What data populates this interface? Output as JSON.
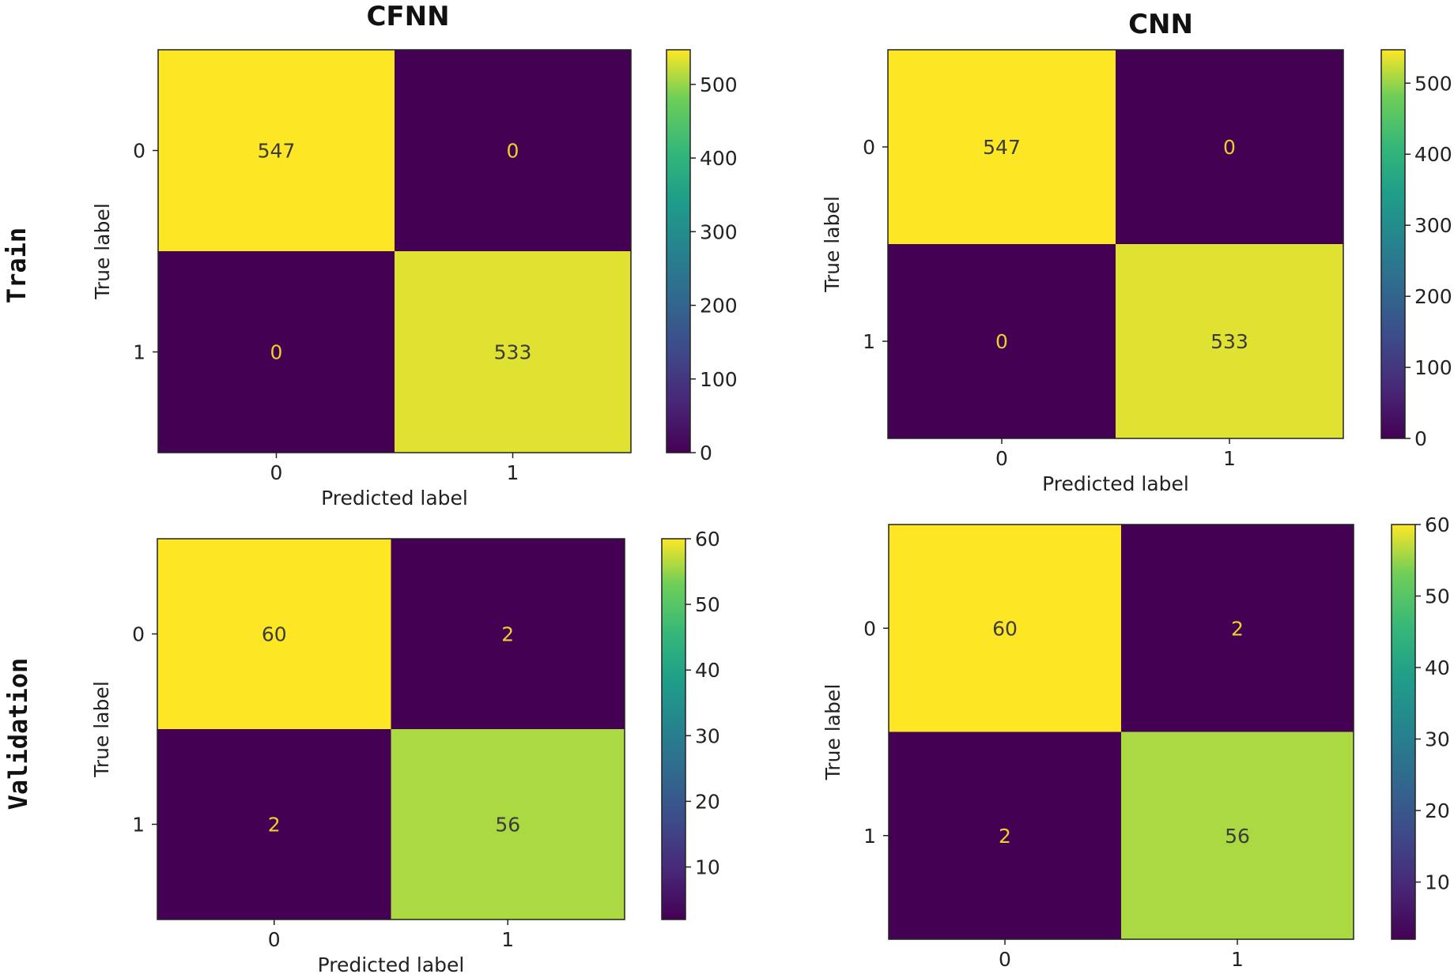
{
  "column_titles": [
    "CFNN",
    "CNN"
  ],
  "row_labels": [
    "Train",
    "Validation"
  ],
  "chart_data": [
    {
      "type": "heatmap",
      "model": "CFNN",
      "split": "Train",
      "matrix": [
        [
          547,
          0
        ],
        [
          0,
          533
        ]
      ],
      "x_categories": [
        "0",
        "1"
      ],
      "y_categories": [
        "0",
        "1"
      ],
      "xlabel": "Predicted label",
      "ylabel": "True label",
      "colorbar": {
        "range": [
          0,
          547
        ],
        "ticks": [
          "0",
          "100",
          "200",
          "300",
          "400",
          "500"
        ]
      },
      "colormap": "viridis"
    },
    {
      "type": "heatmap",
      "model": "CNN",
      "split": "Train",
      "matrix": [
        [
          547,
          0
        ],
        [
          0,
          533
        ]
      ],
      "x_categories": [
        "0",
        "1"
      ],
      "y_categories": [
        "0",
        "1"
      ],
      "xlabel": "Predicted label",
      "ylabel": "True label",
      "colorbar": {
        "range": [
          0,
          547
        ],
        "ticks": [
          "0",
          "100",
          "200",
          "300",
          "400",
          "500"
        ]
      },
      "colormap": "viridis"
    },
    {
      "type": "heatmap",
      "model": "CFNN",
      "split": "Validation",
      "matrix": [
        [
          60,
          2
        ],
        [
          2,
          56
        ]
      ],
      "x_categories": [
        "0",
        "1"
      ],
      "y_categories": [
        "0",
        "1"
      ],
      "xlabel": "Predicted label",
      "ylabel": "True label",
      "colorbar": {
        "range": [
          2,
          60
        ],
        "ticks": [
          "10",
          "20",
          "30",
          "40",
          "50",
          "60"
        ]
      },
      "colormap": "viridis"
    },
    {
      "type": "heatmap",
      "model": "CNN",
      "split": "Validation",
      "matrix": [
        [
          60,
          2
        ],
        [
          2,
          56
        ]
      ],
      "x_categories": [
        "0",
        "1"
      ],
      "y_categories": [
        "0",
        "1"
      ],
      "xlabel": "Predicted label",
      "ylabel": "True label",
      "colorbar": {
        "range": [
          2,
          60
        ],
        "ticks": [
          "10",
          "20",
          "30",
          "40",
          "50",
          "60"
        ]
      },
      "colormap": "viridis"
    }
  ]
}
